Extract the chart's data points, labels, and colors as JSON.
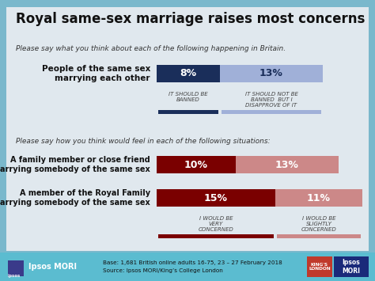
{
  "title": "Royal same-sex marriage raises most concerns",
  "outer_bg": "#7ab8cc",
  "inner_bg": "#e0e8ee",
  "section1_label": "Please say what you think about each of the following happening in Britain.",
  "section2_label": "Please say how you think would feel in each of the following situations:",
  "bar1_label": "People of the same sex\nmarrying each other",
  "bar1_val1": 8,
  "bar1_val2": 13,
  "bar1_color1": "#1a2e5a",
  "bar1_color2": "#a0b0d8",
  "bar1_legend1": "IT SHOULD BE\nBANNED",
  "bar1_legend2": "IT SHOULD NOT BE\nBANNED  BUT I\nDISAPPROVE OF IT",
  "bar2_label": "A family member or close friend\nmarrying somebody of the same sex",
  "bar2_val1": 10,
  "bar2_val2": 13,
  "bar2_color1": "#7a0000",
  "bar2_color2": "#cc8888",
  "bar3_label": "A member of the Royal Family\nmarrying somebody of the same sex",
  "bar3_val1": 15,
  "bar3_val2": 11,
  "bar3_color1": "#7a0000",
  "bar3_color2": "#cc8888",
  "bar23_legend1": "I WOULD BE\nVERY\nCONCERNED",
  "bar23_legend2": "I WOULD BE\nSLIGHTLY\nCONCERNED",
  "footer_bg": "#5bbcd0",
  "footer_text1": "Base: 1,681 British online adults 16-75, 23 – 27 February 2018",
  "footer_text2": "Source: Ipsos MORI/King’s College London",
  "bar_scale": 10
}
